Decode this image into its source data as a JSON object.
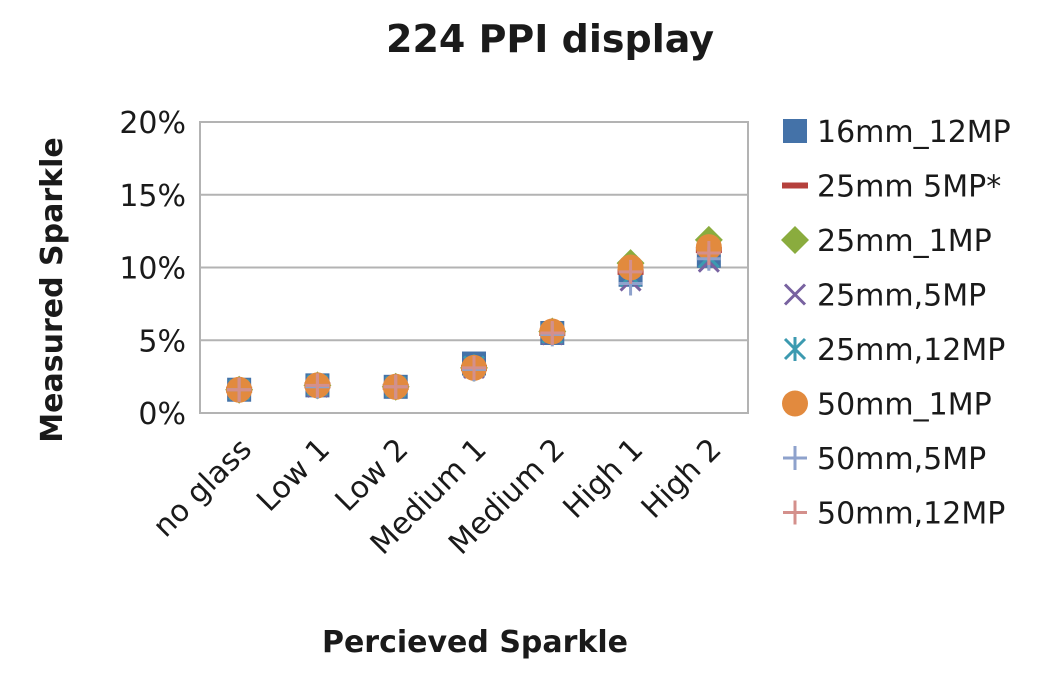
{
  "chart_data": {
    "type": "scatter",
    "title": "224 PPI display",
    "xlabel": "Percieved Sparkle",
    "ylabel": "Measured Sparkle",
    "categories": [
      "no glass",
      "Low 1",
      "Low 2",
      "Medium 1",
      "Medium 2",
      "High 1",
      "High 2"
    ],
    "yticks": [
      "0%",
      "5%",
      "10%",
      "15%",
      "20%"
    ],
    "ylim": [
      0,
      0.2
    ],
    "grid": true,
    "legend": "right",
    "series": [
      {
        "name": "16mm_12MP",
        "marker": "square",
        "color": "#4472a8",
        "values": [
          0.016,
          0.019,
          0.018,
          0.034,
          0.055,
          0.095,
          0.108
        ]
      },
      {
        "name": "25mm 5MP*",
        "marker": "dash",
        "color": "#b5403c",
        "values": [
          0.016,
          0.019,
          0.018,
          0.031,
          0.055,
          0.097,
          0.112
        ]
      },
      {
        "name": "25mm_1MP",
        "marker": "diamond",
        "color": "#8aac3e",
        "values": [
          0.016,
          0.019,
          0.018,
          0.031,
          0.056,
          0.103,
          0.119
        ]
      },
      {
        "name": "25mm,5MP",
        "marker": "x",
        "color": "#7862a0",
        "values": [
          0.016,
          0.018,
          0.018,
          0.031,
          0.054,
          0.091,
          0.104
        ]
      },
      {
        "name": "25mm,12MP",
        "marker": "asterisk",
        "color": "#3c9ab0",
        "values": [
          0.016,
          0.019,
          0.018,
          0.032,
          0.055,
          0.094,
          0.107
        ]
      },
      {
        "name": "50mm_1MP",
        "marker": "circle",
        "color": "#e28a3e",
        "values": [
          0.016,
          0.019,
          0.018,
          0.031,
          0.056,
          0.1,
          0.114
        ]
      },
      {
        "name": "50mm,5MP",
        "marker": "plus",
        "color": "#8ea2cc",
        "values": [
          0.016,
          0.018,
          0.018,
          0.03,
          0.054,
          0.089,
          0.106
        ]
      },
      {
        "name": "50mm,12MP",
        "marker": "plus",
        "color": "#d4908c",
        "values": [
          0.016,
          0.019,
          0.018,
          0.031,
          0.055,
          0.097,
          0.11
        ]
      }
    ]
  }
}
